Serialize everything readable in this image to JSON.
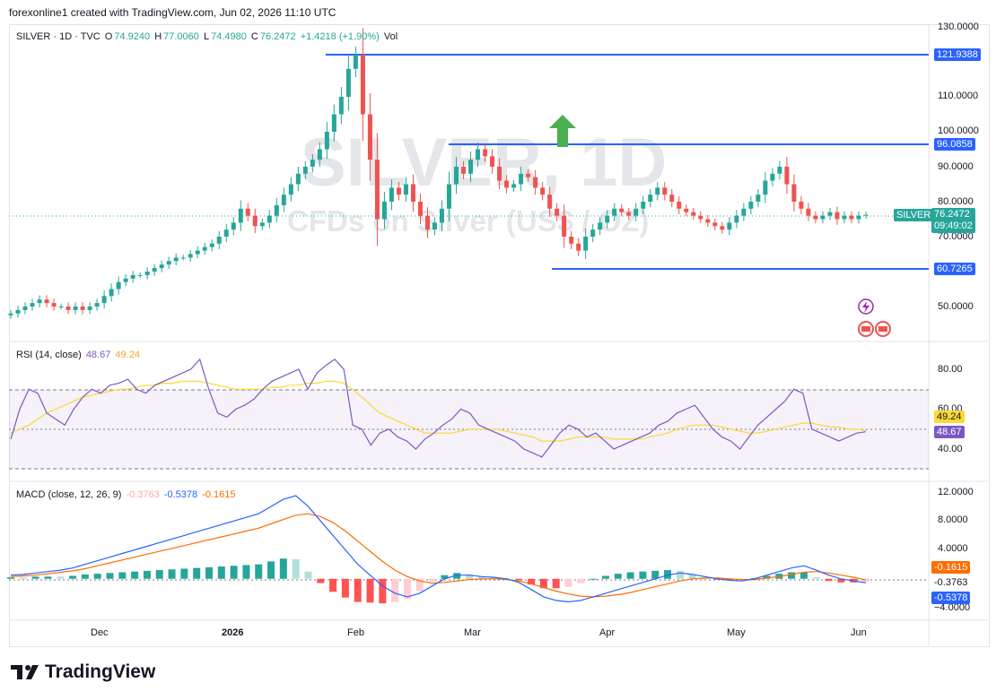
{
  "header": {
    "text": "forexonline1 created with TradingView.com, Jun 02, 2026 11:10 UTC"
  },
  "watermark": {
    "line1": "SILVER, 1D",
    "line2": "CFDs on Silver (US$ / OZ)"
  },
  "price_legend": {
    "symbol": "SILVER · 1D · TVC",
    "o_label": "O",
    "o": "74.9240",
    "h_label": "H",
    "h": "77.0060",
    "l_label": "L",
    "l": "74.4980",
    "c_label": "C",
    "c": "76.2472",
    "change": "+1.4218 (+1.90%)",
    "vol": "Vol"
  },
  "price_axis": [
    "130.0000",
    "110.0000",
    "100.0000",
    "90.0000",
    "80.0000",
    "70.0000",
    "50.0000"
  ],
  "levels": [
    {
      "value": "121.9388"
    },
    {
      "value": "96.0858"
    },
    {
      "value": "60.7265"
    }
  ],
  "last_price": {
    "name": "SILVER",
    "value": "76.2472",
    "countdown": "09:49:02"
  },
  "rsi_legend": {
    "name": "RSI (14, close)",
    "v1": "48.67",
    "v2": "49.24"
  },
  "rsi_axis": [
    "80.00",
    "60.00",
    "40.00"
  ],
  "rsi_tags": {
    "ma": "49.24",
    "rsi": "48.67"
  },
  "macd_legend": {
    "name": "MACD (close, 12, 26, 9)",
    "hist": "-0.3763",
    "macd": "-0.5378",
    "signal": "-0.1615"
  },
  "macd_axis": [
    "12.0000",
    "8.0000",
    "4.0000",
    "−4.0000"
  ],
  "macd_tags": {
    "signal": "-0.1615",
    "hist": "-0.3763",
    "macd": "-0.5378"
  },
  "time_axis": [
    "Dec",
    "2026",
    "Feb",
    "Mar",
    "Apr",
    "May",
    "Jun"
  ],
  "footer": {
    "brand": "TradingView"
  },
  "colors": {
    "up": "#26a69a",
    "down": "#ef5350",
    "level": "#2962ff",
    "rsi": "#7e57c2",
    "rsi_ma": "#fdd835",
    "macd": "#2962ff",
    "signal": "#ff6d00",
    "arrow": "#4caf50"
  },
  "chart_data": {
    "type": "candlestick",
    "price_closes": [
      48,
      49,
      50,
      51,
      52,
      51,
      50,
      50,
      49,
      50,
      49,
      50,
      51,
      53,
      55,
      57,
      58,
      59,
      59,
      60,
      61,
      62,
      63,
      64,
      64,
      65,
      66,
      67,
      68,
      70,
      72,
      74,
      78,
      76,
      73,
      74,
      76,
      79,
      82,
      85,
      88,
      90,
      92,
      95,
      100,
      105,
      110,
      118,
      122,
      105,
      92,
      75,
      80,
      84,
      82,
      85,
      80,
      76,
      72,
      74,
      78,
      85,
      90,
      88,
      92,
      95,
      93,
      90,
      86,
      84,
      85,
      88,
      87,
      84,
      82,
      78,
      76,
      70,
      68,
      66,
      70,
      72,
      74,
      76,
      78,
      77,
      76,
      78,
      80,
      82,
      84,
      82,
      80,
      78,
      77,
      76,
      75,
      74,
      73,
      72,
      74,
      76,
      78,
      80,
      82,
      86,
      88,
      90,
      85,
      80,
      78,
      76,
      75,
      76,
      77,
      75,
      76,
      75,
      76,
      76.25
    ],
    "rsi_values": [
      45,
      60,
      70,
      68,
      58,
      55,
      52,
      60,
      66,
      70,
      68,
      72,
      73,
      75,
      70,
      68,
      72,
      74,
      76,
      78,
      80,
      85,
      70,
      58,
      56,
      60,
      62,
      65,
      70,
      74,
      76,
      78,
      80,
      70,
      78,
      82,
      85,
      80,
      52,
      50,
      42,
      48,
      50,
      46,
      44,
      40,
      45,
      48,
      52,
      55,
      60,
      58,
      52,
      50,
      48,
      46,
      44,
      40,
      38,
      36,
      42,
      48,
      52,
      50,
      46,
      48,
      44,
      40,
      42,
      44,
      46,
      48,
      52,
      54,
      58,
      60,
      62,
      56,
      50,
      46,
      44,
      40,
      46,
      52,
      56,
      60,
      64,
      70,
      68,
      50,
      48,
      46,
      44,
      46,
      48,
      48.67
    ],
    "rsi_ma_values": [
      48,
      50,
      52,
      55,
      58,
      60,
      62,
      64,
      66,
      67,
      68,
      69,
      70,
      70,
      71,
      72,
      72,
      73,
      73,
      74,
      74,
      74,
      73,
      72,
      71,
      70,
      70,
      70,
      70,
      71,
      71,
      72,
      72,
      73,
      73,
      74,
      74,
      73,
      70,
      66,
      62,
      58,
      56,
      54,
      52,
      50,
      48,
      48,
      48,
      48,
      49,
      50,
      50,
      50,
      50,
      49,
      48,
      47,
      46,
      44,
      44,
      44,
      45,
      46,
      46,
      46,
      46,
      45,
      45,
      45,
      45,
      46,
      47,
      48,
      50,
      51,
      52,
      52,
      52,
      51,
      50,
      49,
      48,
      48,
      49,
      50,
      51,
      52,
      53,
      53,
      52,
      51,
      51,
      50,
      50,
      49.24
    ],
    "macd_values": [
      0.5,
      0.6,
      0.8,
      1.0,
      1.2,
      1.5,
      2.0,
      2.5,
      3.0,
      3.5,
      4.0,
      4.5,
      5.0,
      5.5,
      6.0,
      6.5,
      7.0,
      7.5,
      8.0,
      8.5,
      9.0,
      10.0,
      11.0,
      11.5,
      10.0,
      8.0,
      6.0,
      4.0,
      2.0,
      0.5,
      -1.0,
      -2.0,
      -2.5,
      -2.0,
      -1.0,
      0,
      0.5,
      0.5,
      0.3,
      0.2,
      0,
      -0.5,
      -1.5,
      -2.5,
      -3.0,
      -3.2,
      -3.0,
      -2.5,
      -2.0,
      -1.5,
      -1.0,
      -0.5,
      0,
      0.5,
      0.8,
      0.6,
      0.3,
      0,
      -0.2,
      -0.3,
      0,
      0.5,
      1.0,
      1.5,
      1.8,
      1.2,
      0.5,
      0,
      -0.3,
      -0.5378
    ],
    "signal_values": [
      0.3,
      0.4,
      0.5,
      0.7,
      0.9,
      1.1,
      1.4,
      1.8,
      2.2,
      2.6,
      3.0,
      3.4,
      3.8,
      4.2,
      4.6,
      5.0,
      5.4,
      5.8,
      6.2,
      6.6,
      7.0,
      7.6,
      8.2,
      8.8,
      9.0,
      8.6,
      7.8,
      6.6,
      5.2,
      3.8,
      2.4,
      1.2,
      0.3,
      -0.3,
      -0.6,
      -0.5,
      -0.3,
      -0.1,
      0,
      0,
      -0.1,
      -0.3,
      -0.7,
      -1.2,
      -1.7,
      -2.1,
      -2.4,
      -2.5,
      -2.4,
      -2.2,
      -1.9,
      -1.5,
      -1.1,
      -0.7,
      -0.3,
      0,
      0.1,
      0.1,
      0,
      -0.1,
      -0.1,
      0.1,
      0.3,
      0.6,
      0.9,
      1.0,
      0.8,
      0.5,
      0.2,
      -0.1615
    ],
    "ylim_price": [
      45,
      130
    ],
    "ylim_rsi": [
      25,
      95
    ],
    "ylim_macd": [
      -4,
      12
    ]
  }
}
